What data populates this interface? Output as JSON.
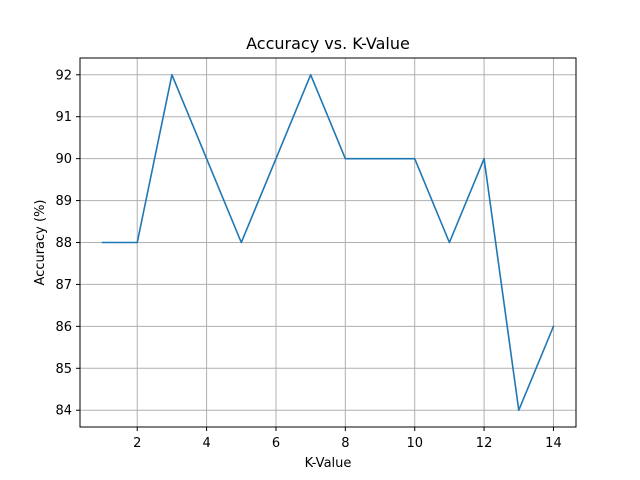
{
  "chart_data": {
    "type": "line",
    "title": "Accuracy vs. K-Value",
    "xlabel": "K-Value",
    "ylabel": "Accuracy (%)",
    "x": [
      1,
      2,
      3,
      4,
      5,
      6,
      7,
      8,
      9,
      10,
      11,
      12,
      13,
      14
    ],
    "series": [
      {
        "values": [
          88,
          88,
          92,
          90,
          88,
          90,
          92,
          90,
          90,
          90,
          88,
          90,
          84,
          86
        ]
      }
    ],
    "xlim": [
      0.35,
      14.65
    ],
    "ylim": [
      83.6,
      92.4
    ],
    "xticks": [
      2,
      4,
      6,
      8,
      10,
      12,
      14
    ],
    "yticks": [
      84,
      85,
      86,
      87,
      88,
      89,
      90,
      91,
      92
    ],
    "grid": true,
    "line_color": "#1f77b4",
    "grid_color": "#b0b0b0"
  }
}
